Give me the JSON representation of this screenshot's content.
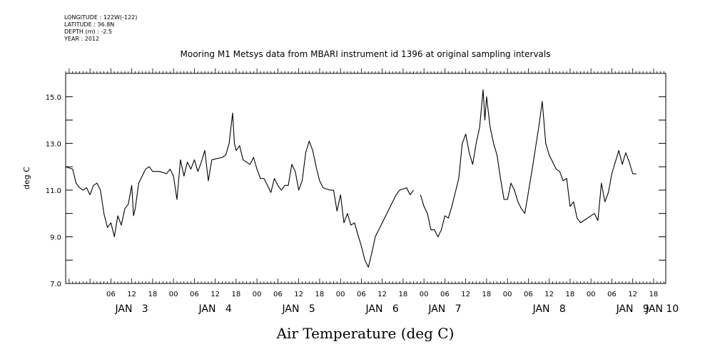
{
  "header": {
    "meta_lines": [
      "LONGITUDE : 122W(-122)",
      "LATITUDE : 36.8N",
      "DEPTH (m) : -2.5",
      "YEAR : 2012"
    ],
    "title": "Mooring M1 Metsys data from MBARI instrument id 1396 at original sampling intervals"
  },
  "chart_data": {
    "type": "line",
    "title": "Mooring M1 Metsys data from MBARI instrument id 1396 at original sampling intervals",
    "xlabel": "Air Temperature (deg C)",
    "ylabel": "deg C",
    "x_units": "hours since 2012-01-03 00:00",
    "xlim": [
      -7,
      165.5
    ],
    "ylim": [
      7.0,
      16.0
    ],
    "y_ticks": [
      "7.0",
      "9.0",
      "11.0",
      "13.0",
      "15.0"
    ],
    "y_tick_values": [
      7,
      9,
      11,
      13,
      15
    ],
    "x_tick_labels": [
      {
        "hour": 6,
        "label": "06"
      },
      {
        "hour": 12,
        "label": "12"
      },
      {
        "hour": 18,
        "label": "18"
      },
      {
        "hour": 24,
        "label": "00"
      },
      {
        "hour": 30,
        "label": "06"
      },
      {
        "hour": 36,
        "label": "12"
      },
      {
        "hour": 42,
        "label": "18"
      },
      {
        "hour": 48,
        "label": "00"
      },
      {
        "hour": 54,
        "label": "06"
      },
      {
        "hour": 60,
        "label": "12"
      },
      {
        "hour": 66,
        "label": "18"
      },
      {
        "hour": 72,
        "label": "00"
      },
      {
        "hour": 78,
        "label": "06"
      },
      {
        "hour": 84,
        "label": "12"
      },
      {
        "hour": 90,
        "label": "18"
      },
      {
        "hour": 96,
        "label": "00"
      },
      {
        "hour": 102,
        "label": "06"
      },
      {
        "hour": 108,
        "label": "12"
      },
      {
        "hour": 114,
        "label": "18"
      },
      {
        "hour": 120,
        "label": "00"
      },
      {
        "hour": 126,
        "label": "06"
      },
      {
        "hour": 132,
        "label": "12"
      },
      {
        "hour": 138,
        "label": "18"
      },
      {
        "hour": 144,
        "label": "00"
      },
      {
        "hour": 150,
        "label": "06"
      },
      {
        "hour": 156,
        "label": "12"
      },
      {
        "hour": 162,
        "label": "18"
      },
      {
        "hour": 168,
        "label": "00"
      }
    ],
    "day_labels": [
      {
        "hour": 12,
        "label": "JAN   3"
      },
      {
        "hour": 36,
        "label": "JAN   4"
      },
      {
        "hour": 60,
        "label": "JAN   5"
      },
      {
        "hour": 84,
        "label": "JAN   6"
      },
      {
        "hour": 102,
        "label": "JAN   7"
      },
      {
        "hour": 132,
        "label": "JAN   8"
      },
      {
        "hour": 156,
        "label": "JAN   9"
      },
      {
        "hour": 164.5,
        "label": "JAN 10"
      }
    ],
    "series": [
      {
        "segments": [
          [
            [
              -7,
              12.0
            ],
            [
              -5,
              11.9
            ],
            [
              -4,
              11.3
            ],
            [
              -3,
              11.1
            ],
            [
              -2,
              11.0
            ],
            [
              -1,
              11.1
            ],
            [
              0,
              10.8
            ],
            [
              1,
              11.2
            ],
            [
              2,
              11.3
            ],
            [
              3,
              11.0
            ],
            [
              4,
              10.0
            ],
            [
              5,
              9.4
            ],
            [
              6,
              9.6
            ],
            [
              7,
              9.0
            ],
            [
              8,
              9.9
            ],
            [
              9,
              9.5
            ],
            [
              10,
              10.2
            ],
            [
              11,
              10.4
            ],
            [
              12,
              11.2
            ],
            [
              12.5,
              9.9
            ],
            [
              13,
              10.2
            ],
            [
              14,
              11.3
            ],
            [
              16,
              11.9
            ],
            [
              17,
              12.0
            ],
            [
              18,
              11.8
            ],
            [
              20,
              11.8
            ],
            [
              22,
              11.7
            ],
            [
              23,
              11.9
            ],
            [
              24,
              11.6
            ],
            [
              25,
              10.6
            ],
            [
              26,
              12.3
            ],
            [
              27,
              11.6
            ],
            [
              28,
              12.2
            ],
            [
              29,
              11.9
            ],
            [
              30,
              12.3
            ],
            [
              31,
              11.8
            ],
            [
              32,
              12.2
            ],
            [
              33,
              12.7
            ],
            [
              34,
              11.4
            ],
            [
              35,
              12.3
            ],
            [
              38,
              12.4
            ],
            [
              39,
              12.5
            ],
            [
              40,
              13.0
            ],
            [
              41,
              14.3
            ],
            [
              41.5,
              13.0
            ],
            [
              42,
              12.7
            ],
            [
              43,
              12.9
            ],
            [
              44,
              12.3
            ],
            [
              46,
              12.1
            ],
            [
              47,
              12.4
            ],
            [
              48,
              11.9
            ],
            [
              49,
              11.5
            ],
            [
              50,
              11.5
            ],
            [
              51,
              11.2
            ],
            [
              52,
              10.9
            ],
            [
              53,
              11.5
            ],
            [
              54,
              11.2
            ],
            [
              55,
              11.0
            ],
            [
              56,
              11.2
            ],
            [
              57,
              11.2
            ],
            [
              58,
              12.1
            ],
            [
              59,
              11.8
            ],
            [
              60,
              11.0
            ],
            [
              61,
              11.4
            ],
            [
              62,
              12.6
            ],
            [
              63,
              13.1
            ],
            [
              64,
              12.7
            ],
            [
              65,
              12.0
            ],
            [
              66,
              11.4
            ],
            [
              67,
              11.1
            ],
            [
              69,
              11.0
            ],
            [
              70,
              11.0
            ],
            [
              71,
              10.1
            ],
            [
              72,
              10.8
            ],
            [
              73,
              9.6
            ],
            [
              74,
              10.0
            ],
            [
              75,
              9.5
            ],
            [
              76,
              9.6
            ],
            [
              77,
              9.1
            ],
            [
              78,
              8.6
            ],
            [
              79,
              8.0
            ],
            [
              80,
              7.7
            ],
            [
              81,
              8.3
            ],
            [
              82,
              9.0
            ],
            [
              84,
              9.6
            ],
            [
              86,
              10.2
            ],
            [
              88,
              10.8
            ],
            [
              89,
              11.0
            ],
            [
              91,
              11.1
            ],
            [
              92,
              10.8
            ],
            [
              93,
              11.0
            ]
          ],
          [
            [
              95,
              10.8
            ],
            [
              96,
              10.3
            ],
            [
              97,
              10.0
            ],
            [
              98,
              9.3
            ],
            [
              99,
              9.3
            ],
            [
              100,
              9.0
            ],
            [
              101,
              9.3
            ],
            [
              102,
              9.9
            ],
            [
              103,
              9.8
            ],
            [
              104,
              10.3
            ],
            [
              106,
              11.5
            ],
            [
              107,
              13.0
            ],
            [
              108,
              13.4
            ],
            [
              109,
              12.6
            ],
            [
              110,
              12.1
            ],
            [
              111,
              13.0
            ],
            [
              112,
              13.7
            ],
            [
              113,
              15.3
            ],
            [
              113.5,
              14.0
            ],
            [
              114,
              15.0
            ],
            [
              115,
              13.7
            ],
            [
              116,
              13.0
            ],
            [
              117,
              12.5
            ],
            [
              118,
              11.5
            ],
            [
              119,
              10.6
            ],
            [
              120,
              10.6
            ],
            [
              121,
              11.3
            ],
            [
              122,
              11.0
            ],
            [
              123,
              10.5
            ],
            [
              124,
              10.2
            ],
            [
              125,
              10.0
            ],
            [
              127,
              11.8
            ],
            [
              129,
              13.7
            ],
            [
              130,
              14.8
            ],
            [
              131,
              13.0
            ],
            [
              132,
              12.5
            ],
            [
              133,
              12.2
            ],
            [
              134,
              11.9
            ],
            [
              135,
              11.8
            ],
            [
              136,
              11.4
            ],
            [
              137,
              11.5
            ],
            [
              138,
              10.3
            ],
            [
              139,
              10.5
            ],
            [
              140,
              9.8
            ],
            [
              141,
              9.6
            ],
            [
              142,
              9.7
            ],
            [
              144,
              9.9
            ],
            [
              145,
              10.0
            ],
            [
              146,
              9.7
            ],
            [
              147,
              11.3
            ],
            [
              148,
              10.5
            ],
            [
              149,
              10.9
            ],
            [
              150,
              11.7
            ],
            [
              151,
              12.2
            ],
            [
              152,
              12.7
            ],
            [
              153,
              12.1
            ],
            [
              154,
              12.6
            ],
            [
              155,
              12.2
            ],
            [
              156,
              11.7
            ],
            [
              157,
              11.7
            ]
          ]
        ]
      }
    ]
  }
}
